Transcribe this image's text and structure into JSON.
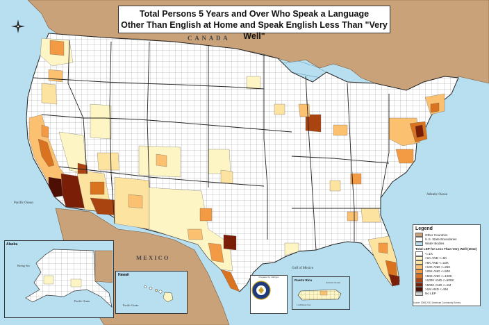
{
  "title": {
    "line1": "Total Persons 5 Years and Over Who Speak a Language",
    "line2": "Other Than English at Home and Speak English Less Than \"Very Well\""
  },
  "labels": {
    "canada": "C A N A D A",
    "mexico": "M E X I C O",
    "pacific": "Pacific Ocean",
    "atlantic": "Atlantic Ocean",
    "gulf": "Gulf of Mexico",
    "alaska_title": "Alaska",
    "alaska_bering": "Bering Sea",
    "alaska_pacific": "Pacific Ocean",
    "hawaii_title": "Hawaii",
    "hawaii_pacific": "Pacific Ocean",
    "pr_title": "Puerto Rico",
    "pr_atlantic": "Atlantic Ocean",
    "pr_caribbean": "Caribbean Sea"
  },
  "legend": {
    "title": "Legend",
    "base_items": [
      {
        "label": "Other Countries",
        "color": "#c9a27a"
      },
      {
        "label": "U.S. State Boundaries",
        "color": "#ffffff"
      },
      {
        "label": "Water Bodies",
        "color": "#b7dff0"
      }
    ],
    "subtitle": "Total LEP for Less Than Very Well (2012)",
    "classes": [
      {
        "label": "<=1K",
        "color": "#ffffff"
      },
      {
        "label": ">1K AND <=5K",
        "color": "#fdf5c3"
      },
      {
        "label": ">5K AND <=10K",
        "color": "#fde3a0"
      },
      {
        "label": ">10K AND <=25K",
        "color": "#fbc171"
      },
      {
        "label": ">25K AND <=50K",
        "color": "#f29a44"
      },
      {
        "label": ">50K AND <=100K",
        "color": "#d9731f"
      },
      {
        "label": ">100K AND <=500K",
        "color": "#a94410"
      },
      {
        "label": ">500K AND <=1M",
        "color": "#7a1e08"
      },
      {
        "label": ">1M AND <=5M",
        "color": "#4d0e03"
      },
      {
        "label": "No LEP",
        "color": "#d0d0d0"
      }
    ]
  },
  "source_note": "Source: 2008-2012 American Community Survey",
  "seal_text": "Prepared by: LEP.gov",
  "colors": {
    "water": "#b7dff0",
    "foreign": "#c9a27a",
    "border": "#333333"
  }
}
